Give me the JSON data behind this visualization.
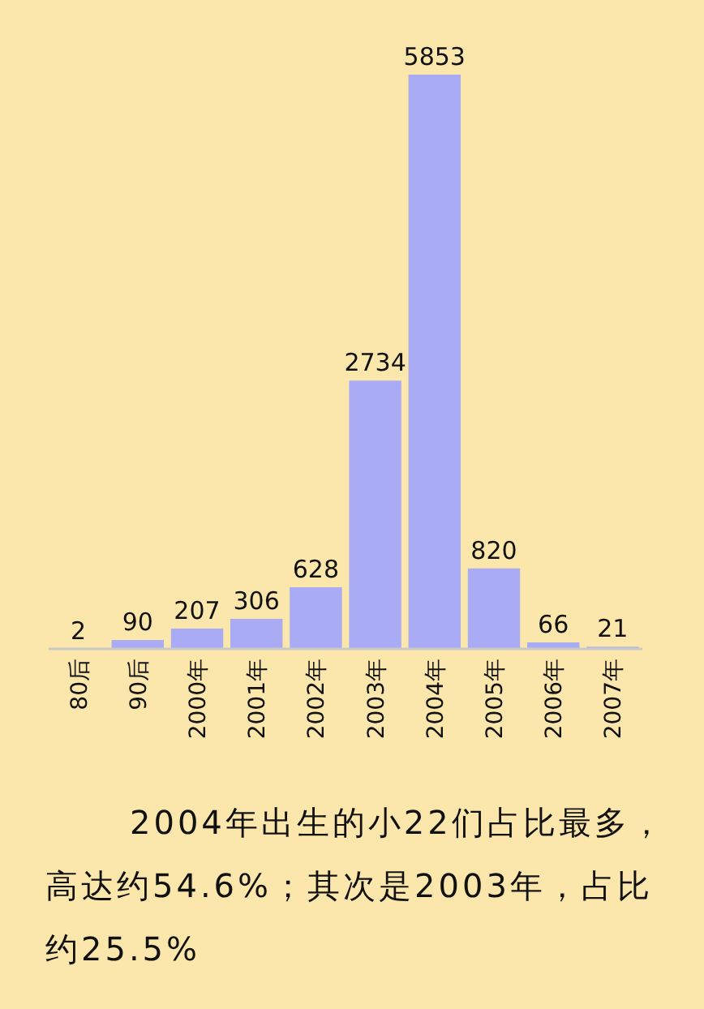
{
  "chart_data": {
    "type": "bar",
    "categories": [
      "80后",
      "90后",
      "2000年",
      "2001年",
      "2002年",
      "2003年",
      "2004年",
      "2005年",
      "2006年",
      "2007年"
    ],
    "values": [
      2,
      90,
      207,
      306,
      628,
      2734,
      5853,
      820,
      66,
      21
    ],
    "color": "#a9acf4",
    "data_labels": true,
    "annotations": [
      "2004年出生的小22们占比最多，高达约54.6%；其次是2003年，占比约25.5%"
    ]
  }
}
